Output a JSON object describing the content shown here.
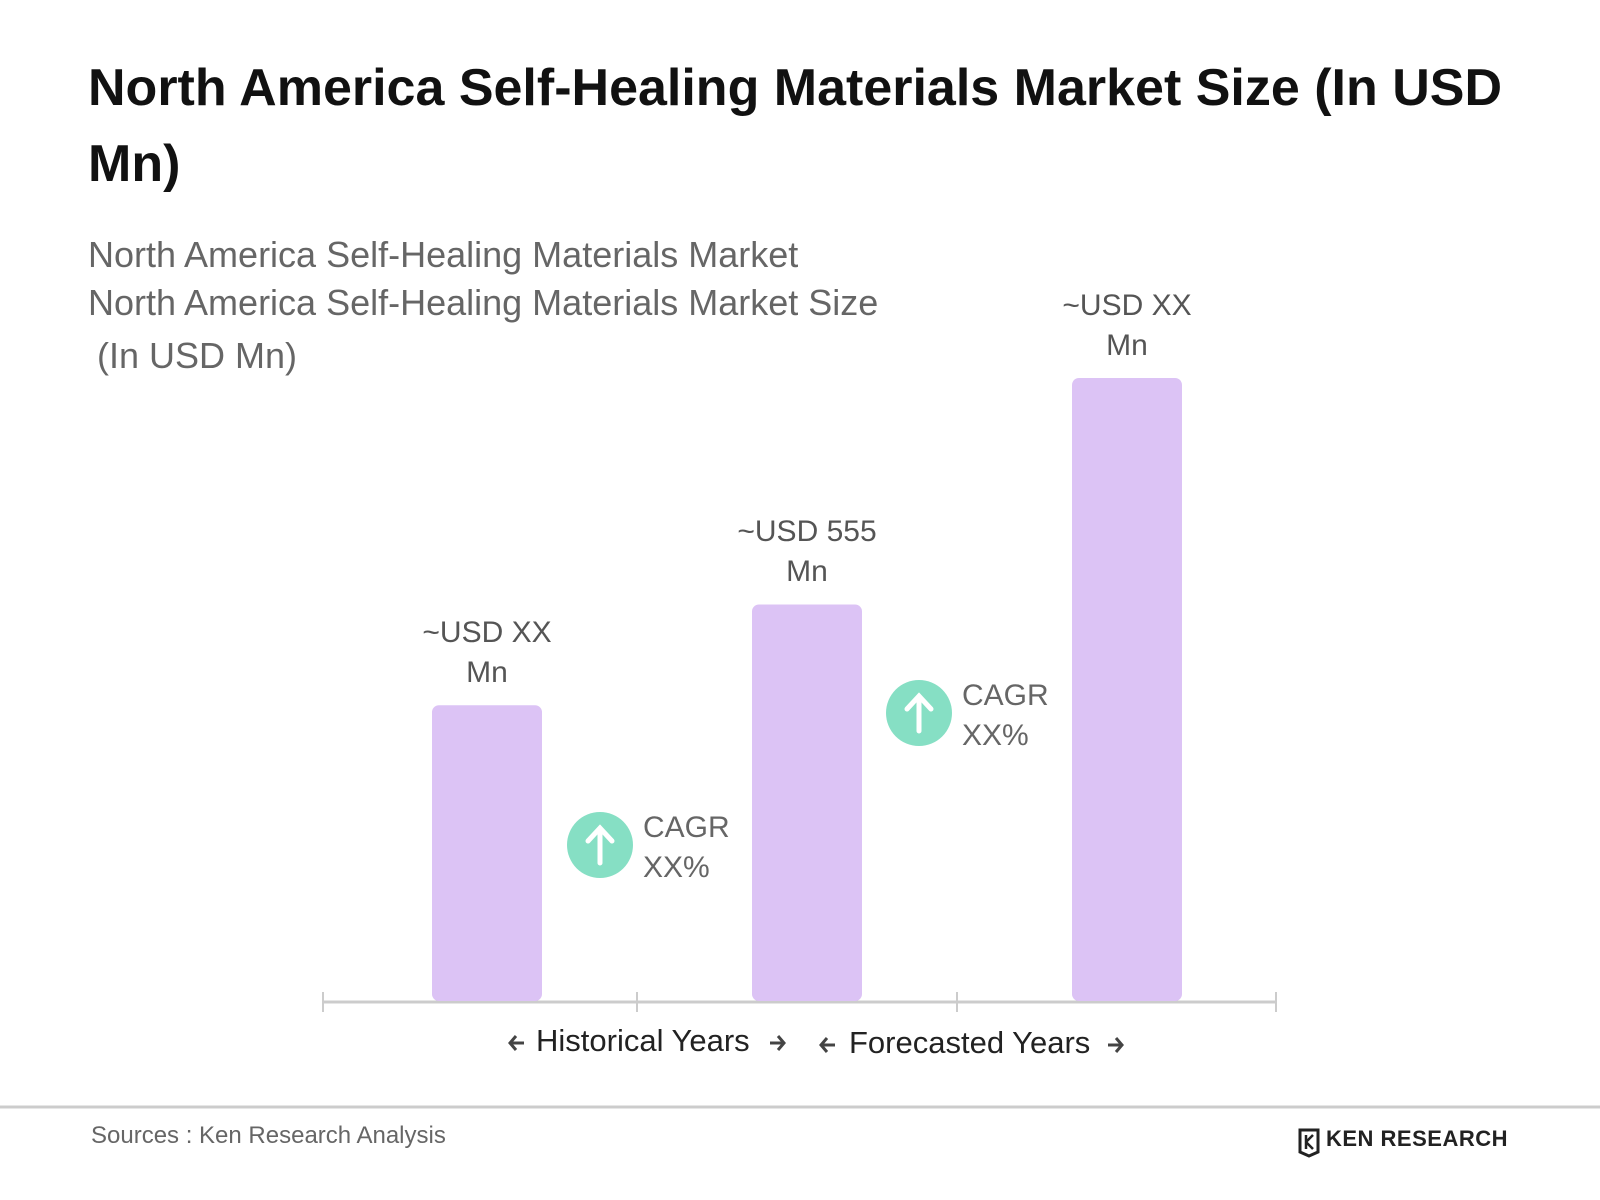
{
  "chart_data": {
    "type": "bar",
    "title": "North America Self-Healing Materials Market Size (In USD Mn)",
    "subtitle": [
      "North America Self-Healing Materials Market",
      "North America Self-Healing Materials Market Size",
      "(In USD Mn)"
    ],
    "categories": [
      null,
      null,
      null
    ],
    "values": [
      414,
      555,
      872
    ],
    "value_labels": [
      "~USD XX Mn",
      "~USD 555 Mn",
      "~USD XX Mn"
    ],
    "color": "#dcc3f5",
    "annotations": [
      {
        "text": "CAGR XX%",
        "color": "#86dfc4"
      },
      {
        "text": "CAGR XX%",
        "color": "#86dfc4"
      }
    ],
    "periods": [
      "Historical Years",
      "Forecasted Years"
    ],
    "source": "Sources : Ken Research Analysis",
    "logo": "KEN RESEARCH"
  }
}
